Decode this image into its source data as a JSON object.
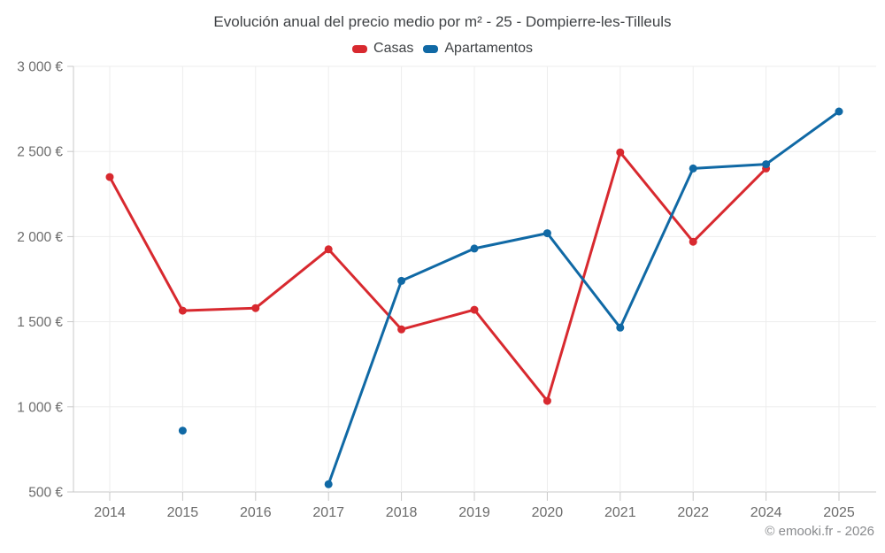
{
  "header": {
    "title": "Evolución anual del precio medio por m² - 25 - Dompierre-les-Tilleuls"
  },
  "footer": {
    "copyright": "© emooki.fr - 2026"
  },
  "chart_data": {
    "type": "line",
    "title": "Evolución anual del precio medio por m² - 25 - Dompierre-les-Tilleuls",
    "categories": [
      "2014",
      "2015",
      "2016",
      "2017",
      "2018",
      "2019",
      "2020",
      "2021",
      "2022",
      "2024",
      "2025"
    ],
    "series": [
      {
        "name": "Casas",
        "color": "#d8292f",
        "values": [
          2350,
          1565,
          1580,
          1925,
          1455,
          1570,
          1035,
          2495,
          1970,
          2400,
          null
        ]
      },
      {
        "name": "Apartamentos",
        "color": "#1069a5",
        "values": [
          null,
          860,
          null,
          545,
          1740,
          1930,
          2020,
          1465,
          2400,
          2425,
          2735
        ]
      }
    ],
    "xlabel": "",
    "ylabel": "",
    "ylim": [
      500,
      3000
    ],
    "y_ticks": [
      {
        "value": 500,
        "label": "500 €"
      },
      {
        "value": 1000,
        "label": "1 000 €"
      },
      {
        "value": 1500,
        "label": "1 500 €"
      },
      {
        "value": 2000,
        "label": "2 000 €"
      },
      {
        "value": 2500,
        "label": "2 500 €"
      },
      {
        "value": 3000,
        "label": "3 000 €"
      }
    ],
    "grid": "horizontal+vertical",
    "legend_position": "top",
    "grid_color": "#ededed",
    "axis_line_color": "#c9c9c9",
    "axis_label_color": "#6b6b6b"
  }
}
